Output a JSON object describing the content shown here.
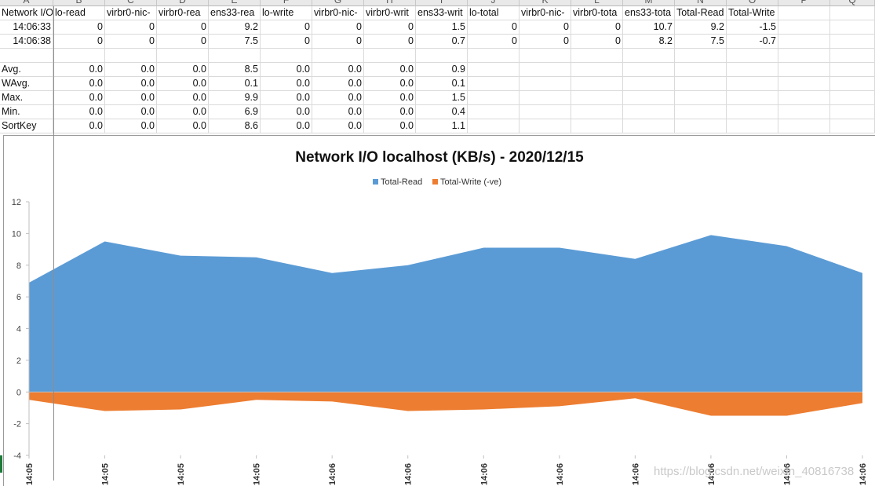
{
  "spreadsheet": {
    "col_headers": [
      "A",
      "B",
      "C",
      "D",
      "E",
      "F",
      "G",
      "H",
      "I",
      "J",
      "K",
      "L",
      "M",
      "N",
      "O",
      "P",
      "Q"
    ],
    "header_row": [
      "Network I/O",
      "lo-read",
      "virbr0-nic-",
      "virbr0-rea",
      "ens33-rea",
      "lo-write",
      "virbr0-nic-",
      "virbr0-writ",
      "ens33-writ",
      "lo-total",
      "virbr0-nic-",
      "virbr0-tota",
      "ens33-tota",
      "Total-Read",
      "Total-Write (-ve)"
    ],
    "rows": [
      [
        "14:06:33",
        "0",
        "0",
        "0",
        "9.2",
        "0",
        "0",
        "0",
        "1.5",
        "0",
        "0",
        "0",
        "10.7",
        "9.2",
        "-1.5"
      ],
      [
        "14:06:38",
        "0",
        "0",
        "0",
        "7.5",
        "0",
        "0",
        "0",
        "0.7",
        "0",
        "0",
        "0",
        "8.2",
        "7.5",
        "-0.7"
      ]
    ],
    "stats_rows": [
      [
        "Avg.",
        "0.0",
        "0.0",
        "0.0",
        "8.5",
        "0.0",
        "0.0",
        "0.0",
        "0.9"
      ],
      [
        "WAvg.",
        "0.0",
        "0.0",
        "0.0",
        "0.1",
        "0.0",
        "0.0",
        "0.0",
        "0.1"
      ],
      [
        "Max.",
        "0.0",
        "0.0",
        "0.0",
        "9.9",
        "0.0",
        "0.0",
        "0.0",
        "1.5"
      ],
      [
        "Min.",
        "0.0",
        "0.0",
        "0.0",
        "6.9",
        "0.0",
        "0.0",
        "0.0",
        "0.4"
      ],
      [
        "SortKey",
        "0.0",
        "0.0",
        "0.0",
        "8.6",
        "0.0",
        "0.0",
        "0.0",
        "1.1"
      ]
    ]
  },
  "chart_data": {
    "type": "area",
    "title": "Network I/O localhost (KB/s) - 2020/12/15",
    "x": [
      "14:05",
      "14:05",
      "14:05",
      "14:05",
      "14:06",
      "14:06",
      "14:06",
      "14:06",
      "14:06",
      "14:06",
      "14:06",
      "14:06"
    ],
    "series": [
      {
        "name": "Total-Read",
        "values": [
          6.9,
          9.5,
          8.6,
          8.5,
          7.5,
          8.0,
          9.1,
          9.1,
          8.4,
          9.9,
          9.2,
          7.5
        ],
        "color": "#5b9bd5"
      },
      {
        "name": "Total-Write (-ve)",
        "values": [
          -0.5,
          -1.2,
          -1.1,
          -0.5,
          -0.6,
          -1.2,
          -1.1,
          -0.9,
          -0.4,
          -1.5,
          -1.5,
          -0.7
        ],
        "color": "#ed7d31"
      }
    ],
    "ylim": [
      -4,
      12
    ],
    "yticks": [
      -4,
      -2,
      0,
      2,
      4,
      6,
      8,
      10,
      12
    ],
    "legend": "top-center",
    "grid": false
  },
  "watermark": "https://blog.csdn.net/weixin_40816738"
}
